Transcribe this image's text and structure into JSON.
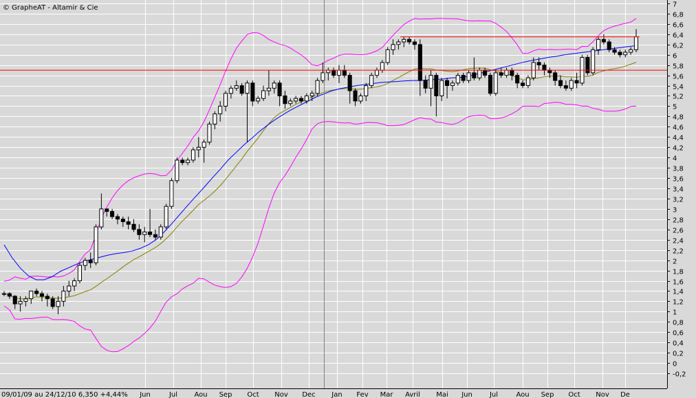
{
  "chart_data": {
    "type": "candlestick",
    "title": "© GrapheAT - Altamir & Cie",
    "footer": "09/01/09 au 24/12/10   6,350   +4,44%",
    "month_labels": [
      "Jun",
      "Jul",
      "Aou",
      "Sep",
      "Oct",
      "Nov",
      "Dec",
      "Jan",
      "Fev",
      "Mar",
      "Avril",
      "Mai",
      "Jun",
      "Jul",
      "Aou",
      "Sep",
      "Oct",
      "Nov",
      "De"
    ],
    "y_tick_labels": [
      "7",
      "6,8",
      "6,6",
      "6,4",
      "6,2",
      "6",
      "5,8",
      "5,6",
      "5,4",
      "5,2",
      "5",
      "4,8",
      "4,6",
      "4,4",
      "4,2",
      "4",
      "3,8",
      "3,6",
      "3,4",
      "3,2",
      "3",
      "2,8",
      "2,6",
      "2,4",
      "2,2",
      "2",
      "1,8",
      "1,6",
      "1,4",
      "1,2",
      "1",
      "0,8",
      "0,6",
      "0,4",
      "0,2",
      "0",
      "-0,2"
    ],
    "ylim": [
      -0.2,
      7
    ],
    "grid": true,
    "horizontal_lines": [
      5.7
    ],
    "resistance_line": 6.35,
    "colors": {
      "background": "#d9d9d9",
      "grid": "#ffffff",
      "bollinger": "#ff00ff",
      "ma_short": "#0000ff",
      "ma_long": "#808000",
      "hline": "#ff0000",
      "up_candle": "#ffffff",
      "down_candle": "#000000"
    },
    "candles": [
      [
        1.35,
        1.4,
        1.3,
        1.35
      ],
      [
        1.35,
        1.38,
        1.25,
        1.3
      ],
      [
        1.3,
        1.32,
        1.05,
        1.15
      ],
      [
        1.15,
        1.3,
        1.0,
        1.2
      ],
      [
        1.2,
        1.3,
        1.1,
        1.25
      ],
      [
        1.25,
        1.35,
        1.15,
        1.4
      ],
      [
        1.4,
        1.45,
        1.3,
        1.35
      ],
      [
        1.35,
        1.4,
        1.2,
        1.3
      ],
      [
        1.3,
        1.35,
        1.1,
        1.25
      ],
      [
        1.25,
        1.3,
        1.05,
        1.1
      ],
      [
        1.1,
        1.3,
        0.95,
        1.2
      ],
      [
        1.2,
        1.5,
        1.1,
        1.4
      ],
      [
        1.4,
        1.6,
        1.3,
        1.5
      ],
      [
        1.5,
        1.65,
        1.4,
        1.6
      ],
      [
        1.6,
        1.95,
        1.55,
        1.9
      ],
      [
        1.9,
        2.05,
        1.8,
        2.0
      ],
      [
        2.0,
        2.15,
        1.85,
        1.95
      ],
      [
        1.95,
        2.7,
        1.9,
        2.65
      ],
      [
        2.65,
        3.3,
        2.6,
        3.0
      ],
      [
        3.0,
        3.0,
        2.85,
        2.95
      ],
      [
        2.95,
        3.0,
        2.8,
        2.85
      ],
      [
        2.85,
        2.9,
        2.7,
        2.8
      ],
      [
        2.8,
        2.85,
        2.65,
        2.75
      ],
      [
        2.75,
        2.85,
        2.6,
        2.7
      ],
      [
        2.7,
        2.8,
        2.55,
        2.6
      ],
      [
        2.6,
        2.7,
        2.4,
        2.5
      ],
      [
        2.5,
        2.65,
        2.35,
        2.55
      ],
      [
        2.55,
        3.0,
        2.45,
        2.5
      ],
      [
        2.5,
        2.6,
        2.4,
        2.45
      ],
      [
        2.45,
        2.7,
        2.4,
        2.65
      ],
      [
        2.65,
        3.1,
        2.6,
        3.05
      ],
      [
        3.05,
        3.6,
        3.0,
        3.55
      ],
      [
        3.55,
        4.0,
        3.5,
        3.95
      ],
      [
        3.95,
        4.0,
        3.85,
        3.9
      ],
      [
        3.9,
        4.0,
        3.85,
        3.95
      ],
      [
        3.95,
        4.2,
        3.9,
        4.15
      ],
      [
        4.15,
        4.4,
        4.0,
        4.2
      ],
      [
        4.2,
        4.35,
        3.9,
        4.3
      ],
      [
        4.3,
        4.7,
        4.25,
        4.65
      ],
      [
        4.65,
        4.9,
        4.55,
        4.85
      ],
      [
        4.85,
        5.1,
        4.7,
        5.0
      ],
      [
        5.0,
        5.3,
        4.9,
        5.25
      ],
      [
        5.25,
        5.4,
        5.15,
        5.35
      ],
      [
        5.35,
        5.5,
        5.3,
        5.4
      ],
      [
        5.4,
        5.45,
        5.2,
        5.25
      ],
      [
        5.25,
        5.5,
        4.3,
        5.45
      ],
      [
        5.45,
        5.5,
        5.0,
        5.1
      ],
      [
        5.1,
        5.2,
        5.05,
        5.15
      ],
      [
        5.15,
        5.4,
        5.1,
        5.3
      ],
      [
        5.3,
        5.7,
        5.2,
        5.35
      ],
      [
        5.35,
        5.5,
        5.25,
        5.45
      ],
      [
        5.45,
        5.5,
        5.0,
        5.2
      ],
      [
        5.2,
        5.3,
        4.95,
        5.05
      ],
      [
        5.05,
        5.15,
        5.0,
        5.1
      ],
      [
        5.1,
        5.2,
        5.05,
        5.15
      ],
      [
        5.15,
        5.2,
        5.05,
        5.1
      ],
      [
        5.1,
        5.25,
        5.05,
        5.2
      ],
      [
        5.2,
        5.3,
        5.1,
        5.25
      ],
      [
        5.25,
        5.55,
        5.2,
        5.5
      ],
      [
        5.5,
        5.85,
        5.45,
        5.65
      ],
      [
        5.65,
        5.75,
        5.5,
        5.7
      ],
      [
        5.7,
        5.75,
        5.55,
        5.6
      ],
      [
        5.6,
        5.8,
        5.45,
        5.7
      ],
      [
        5.7,
        5.8,
        5.55,
        5.6
      ],
      [
        5.6,
        5.65,
        5.05,
        5.3
      ],
      [
        5.3,
        5.35,
        5.0,
        5.1
      ],
      [
        5.1,
        5.25,
        5.05,
        5.2
      ],
      [
        5.2,
        5.45,
        5.1,
        5.4
      ],
      [
        5.4,
        5.65,
        5.35,
        5.6
      ],
      [
        5.6,
        5.75,
        5.55,
        5.7
      ],
      [
        5.7,
        5.9,
        5.65,
        5.85
      ],
      [
        5.85,
        6.15,
        5.8,
        6.1
      ],
      [
        6.1,
        6.3,
        6.0,
        6.2
      ],
      [
        6.2,
        6.3,
        6.1,
        6.25
      ],
      [
        6.25,
        6.35,
        6.15,
        6.3
      ],
      [
        6.3,
        6.35,
        6.2,
        6.25
      ],
      [
        6.25,
        6.3,
        6.1,
        6.2
      ],
      [
        6.2,
        6.3,
        5.2,
        5.5
      ],
      [
        5.5,
        5.6,
        5.25,
        5.35
      ],
      [
        5.35,
        5.7,
        5.0,
        5.6
      ],
      [
        5.6,
        5.65,
        4.8,
        5.2
      ],
      [
        5.2,
        5.55,
        5.1,
        5.5
      ],
      [
        5.5,
        5.55,
        5.15,
        5.4
      ],
      [
        5.4,
        5.5,
        5.3,
        5.45
      ],
      [
        5.45,
        5.65,
        5.4,
        5.6
      ],
      [
        5.6,
        5.65,
        5.45,
        5.5
      ],
      [
        5.5,
        5.7,
        5.45,
        5.65
      ],
      [
        5.65,
        5.95,
        5.5,
        5.55
      ],
      [
        5.55,
        5.75,
        5.5,
        5.7
      ],
      [
        5.7,
        5.75,
        5.55,
        5.6
      ],
      [
        5.6,
        5.65,
        5.2,
        5.25
      ],
      [
        5.25,
        5.7,
        5.2,
        5.65
      ],
      [
        5.65,
        5.75,
        5.55,
        5.6
      ],
      [
        5.6,
        5.75,
        5.55,
        5.7
      ],
      [
        5.7,
        5.75,
        5.5,
        5.6
      ],
      [
        5.6,
        5.65,
        5.35,
        5.45
      ],
      [
        5.45,
        5.5,
        5.35,
        5.4
      ],
      [
        5.4,
        5.6,
        5.35,
        5.55
      ],
      [
        5.55,
        5.95,
        5.5,
        5.85
      ],
      [
        5.85,
        5.95,
        5.7,
        5.8
      ],
      [
        5.8,
        5.85,
        5.6,
        5.7
      ],
      [
        5.7,
        5.75,
        5.55,
        5.65
      ],
      [
        5.65,
        5.7,
        5.4,
        5.5
      ],
      [
        5.5,
        5.6,
        5.35,
        5.4
      ],
      [
        5.4,
        5.5,
        5.3,
        5.35
      ],
      [
        5.35,
        5.55,
        5.3,
        5.5
      ],
      [
        5.5,
        5.65,
        5.35,
        5.45
      ],
      [
        5.45,
        6.0,
        5.4,
        5.95
      ],
      [
        5.95,
        6.0,
        5.6,
        5.65
      ],
      [
        5.65,
        6.15,
        5.6,
        6.1
      ],
      [
        6.1,
        6.35,
        6.0,
        6.3
      ],
      [
        6.3,
        6.4,
        6.2,
        6.25
      ],
      [
        6.25,
        6.3,
        6.05,
        6.1
      ],
      [
        6.1,
        6.15,
        6.0,
        6.05
      ],
      [
        6.05,
        6.1,
        5.95,
        6.0
      ],
      [
        6.0,
        6.1,
        5.95,
        6.05
      ],
      [
        6.05,
        6.15,
        6.0,
        6.1
      ],
      [
        6.1,
        6.5,
        6.05,
        6.35
      ]
    ],
    "ma_short": [
      [
        0,
        2.3
      ],
      [
        10,
        2.05
      ],
      [
        20,
        1.85
      ],
      [
        30,
        1.7
      ],
      [
        40,
        1.62
      ],
      [
        50,
        1.62
      ],
      [
        60,
        1.68
      ],
      [
        70,
        1.78
      ],
      [
        80,
        1.85
      ],
      [
        90,
        1.92
      ],
      [
        100,
        1.98
      ],
      [
        110,
        2.02
      ],
      [
        120,
        2.06
      ],
      [
        130,
        2.1
      ],
      [
        140,
        2.13
      ],
      [
        150,
        2.15
      ],
      [
        160,
        2.18
      ],
      [
        170,
        2.23
      ],
      [
        180,
        2.3
      ],
      [
        190,
        2.4
      ],
      [
        200,
        2.55
      ],
      [
        210,
        2.72
      ],
      [
        220,
        2.9
      ],
      [
        230,
        3.08
      ],
      [
        240,
        3.25
      ],
      [
        250,
        3.42
      ],
      [
        260,
        3.6
      ],
      [
        270,
        3.77
      ],
      [
        280,
        3.95
      ],
      [
        290,
        4.1
      ],
      [
        300,
        4.25
      ],
      [
        310,
        4.38
      ],
      [
        320,
        4.52
      ],
      [
        330,
        4.64
      ],
      [
        340,
        4.75
      ],
      [
        350,
        4.85
      ],
      [
        360,
        4.94
      ],
      [
        370,
        5.02
      ],
      [
        380,
        5.1
      ],
      [
        390,
        5.18
      ],
      [
        400,
        5.24
      ],
      [
        410,
        5.3
      ],
      [
        420,
        5.34
      ],
      [
        430,
        5.37
      ],
      [
        440,
        5.4
      ],
      [
        450,
        5.42
      ],
      [
        460,
        5.44
      ],
      [
        470,
        5.46
      ],
      [
        480,
        5.47
      ],
      [
        490,
        5.48
      ],
      [
        500,
        5.49
      ],
      [
        510,
        5.5
      ],
      [
        520,
        5.5
      ],
      [
        530,
        5.51
      ],
      [
        540,
        5.52
      ],
      [
        550,
        5.53
      ],
      [
        560,
        5.55
      ],
      [
        570,
        5.56
      ],
      [
        580,
        5.58
      ],
      [
        590,
        5.62
      ],
      [
        600,
        5.66
      ],
      [
        610,
        5.7
      ],
      [
        620,
        5.74
      ],
      [
        630,
        5.78
      ],
      [
        640,
        5.82
      ],
      [
        650,
        5.86
      ],
      [
        660,
        5.89
      ],
      [
        670,
        5.92
      ],
      [
        680,
        5.95
      ],
      [
        690,
        5.97
      ],
      [
        700,
        6.0
      ],
      [
        710,
        6.02
      ],
      [
        720,
        6.04
      ],
      [
        730,
        6.06
      ],
      [
        740,
        6.08
      ],
      [
        750,
        6.1
      ],
      [
        760,
        6.12
      ],
      [
        770,
        6.14
      ],
      [
        780,
        6.16
      ],
      [
        790,
        6.18
      ]
    ]
  }
}
